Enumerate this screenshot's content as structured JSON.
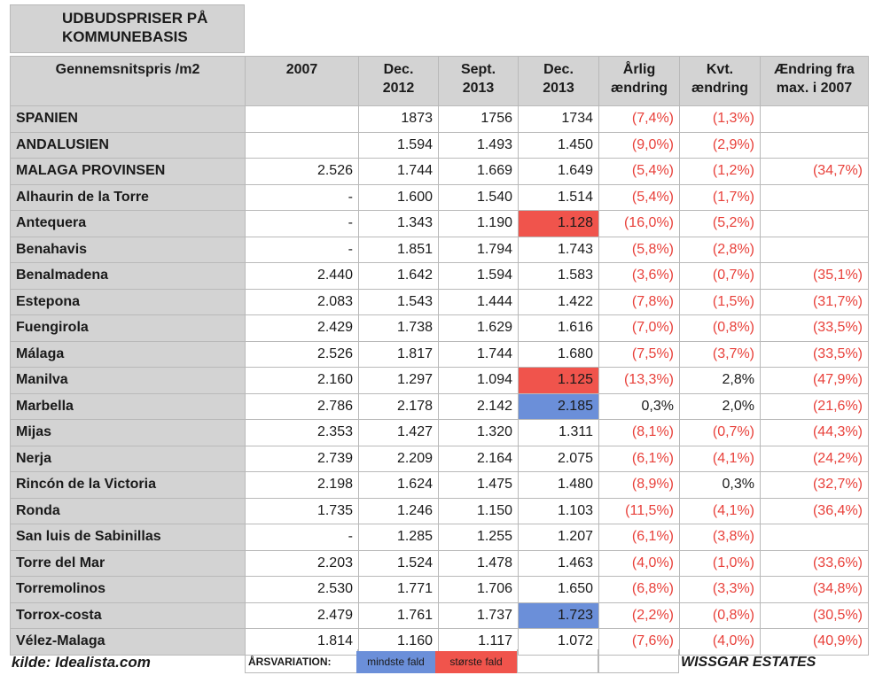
{
  "title_lines": [
    "UDBUDSPRISER PÅ",
    "KOMMUNEBASIS"
  ],
  "columns": [
    [
      "Gennemsnitspris /m2"
    ],
    [
      "2007"
    ],
    [
      "Dec.",
      "2012"
    ],
    [
      "Sept.",
      "2013"
    ],
    [
      "Dec.",
      "2013"
    ],
    [
      "Årlig",
      "ændring"
    ],
    [
      "Kvt.",
      "ændring"
    ],
    [
      "Ændring fra",
      "max. i 2007"
    ]
  ],
  "rows": [
    {
      "name": "SPANIEN",
      "y2007": "",
      "dec2012": "1873",
      "sep2013": "1756",
      "dec2013": "1734",
      "annual": "(7,4%)",
      "quarterly": "(1,3%)",
      "from_max": ""
    },
    {
      "name": "ANDALUSIEN",
      "y2007": "",
      "dec2012": "1.594",
      "sep2013": "1.493",
      "dec2013": "1.450",
      "annual": "(9,0%)",
      "quarterly": "(2,9%)",
      "from_max": ""
    },
    {
      "name": "MALAGA PROVINSEN",
      "y2007": "2.526",
      "dec2012": "1.744",
      "sep2013": "1.669",
      "dec2013": "1.649",
      "annual": "(5,4%)",
      "quarterly": "(1,2%)",
      "from_max": "(34,7%)"
    },
    {
      "name": "Alhaurin de la Torre",
      "y2007": "-",
      "dec2012": "1.600",
      "sep2013": "1.540",
      "dec2013": "1.514",
      "annual": "(5,4%)",
      "quarterly": "(1,7%)",
      "from_max": ""
    },
    {
      "name": "Antequera",
      "y2007": "-",
      "dec2012": "1.343",
      "sep2013": "1.190",
      "dec2013": "1.128",
      "annual": "(16,0%)",
      "quarterly": "(5,2%)",
      "from_max": "",
      "highlight": "red"
    },
    {
      "name": "Benahavis",
      "y2007": "-",
      "dec2012": "1.851",
      "sep2013": "1.794",
      "dec2013": "1.743",
      "annual": "(5,8%)",
      "quarterly": "(2,8%)",
      "from_max": ""
    },
    {
      "name": "Benalmadena",
      "y2007": "2.440",
      "dec2012": "1.642",
      "sep2013": "1.594",
      "dec2013": "1.583",
      "annual": "(3,6%)",
      "quarterly": "(0,7%)",
      "from_max": "(35,1%)"
    },
    {
      "name": "Estepona",
      "y2007": "2.083",
      "dec2012": "1.543",
      "sep2013": "1.444",
      "dec2013": "1.422",
      "annual": "(7,8%)",
      "quarterly": "(1,5%)",
      "from_max": "(31,7%)"
    },
    {
      "name": "Fuengirola",
      "y2007": "2.429",
      "dec2012": "1.738",
      "sep2013": "1.629",
      "dec2013": "1.616",
      "annual": "(7,0%)",
      "quarterly": "(0,8%)",
      "from_max": "(33,5%)"
    },
    {
      "name": "Málaga",
      "y2007": "2.526",
      "dec2012": "1.817",
      "sep2013": "1.744",
      "dec2013": "1.680",
      "annual": "(7,5%)",
      "quarterly": "(3,7%)",
      "from_max": "(33,5%)"
    },
    {
      "name": "Manilva",
      "y2007": "2.160",
      "dec2012": "1.297",
      "sep2013": "1.094",
      "dec2013": "1.125",
      "annual": "(13,3%)",
      "quarterly": "2,8%",
      "from_max": "(47,9%)",
      "highlight": "red"
    },
    {
      "name": "Marbella",
      "y2007": "2.786",
      "dec2012": "2.178",
      "sep2013": "2.142",
      "dec2013": "2.185",
      "annual": "0,3%",
      "quarterly": "2,0%",
      "from_max": "(21,6%)",
      "highlight": "blue"
    },
    {
      "name": "Mijas",
      "y2007": "2.353",
      "dec2012": "1.427",
      "sep2013": "1.320",
      "dec2013": "1.311",
      "annual": "(8,1%)",
      "quarterly": "(0,7%)",
      "from_max": "(44,3%)"
    },
    {
      "name": "Nerja",
      "y2007": "2.739",
      "dec2012": "2.209",
      "sep2013": "2.164",
      "dec2013": "2.075",
      "annual": "(6,1%)",
      "quarterly": "(4,1%)",
      "from_max": "(24,2%)"
    },
    {
      "name": "Rincón de la Victoria",
      "y2007": "2.198",
      "dec2012": "1.624",
      "sep2013": "1.475",
      "dec2013": "1.480",
      "annual": "(8,9%)",
      "quarterly": "0,3%",
      "from_max": "(32,7%)"
    },
    {
      "name": "Ronda",
      "y2007": "1.735",
      "dec2012": "1.246",
      "sep2013": "1.150",
      "dec2013": "1.103",
      "annual": "(11,5%)",
      "quarterly": "(4,1%)",
      "from_max": "(36,4%)"
    },
    {
      "name": "San luis de Sabinillas",
      "y2007": "-",
      "dec2012": "1.285",
      "sep2013": "1.255",
      "dec2013": "1.207",
      "annual": "(6,1%)",
      "quarterly": "(3,8%)",
      "from_max": ""
    },
    {
      "name": "Torre del Mar",
      "y2007": "2.203",
      "dec2012": "1.524",
      "sep2013": "1.478",
      "dec2013": "1.463",
      "annual": "(4,0%)",
      "quarterly": "(1,0%)",
      "from_max": "(33,6%)"
    },
    {
      "name": "Torremolinos",
      "y2007": "2.530",
      "dec2012": "1.771",
      "sep2013": "1.706",
      "dec2013": "1.650",
      "annual": "(6,8%)",
      "quarterly": "(3,3%)",
      "from_max": "(34,8%)"
    },
    {
      "name": "Torrox-costa",
      "y2007": "2.479",
      "dec2012": "1.761",
      "sep2013": "1.737",
      "dec2013": "1.723",
      "annual": "(2,2%)",
      "quarterly": "(0,8%)",
      "from_max": "(30,5%)",
      "highlight": "blue"
    },
    {
      "name": "Vélez-Malaga",
      "y2007": "1.814",
      "dec2012": "1.160",
      "sep2013": "1.117",
      "dec2013": "1.072",
      "annual": "(7,6%)",
      "quarterly": "(4,0%)",
      "from_max": "(40,9%)"
    }
  ],
  "footer": {
    "source": "kilde: Idealista.com",
    "legend_label": "ÅRSVARIATION:",
    "legend_min": "mindste fald",
    "legend_max": "største fald",
    "brand": "WISSGAR ESTATES"
  },
  "colors": {
    "header_bg": "#d3d3d3",
    "negative_text": "#e8403a",
    "highlight_red": "#f0544c",
    "highlight_blue": "#6b8fd9"
  },
  "chart_data": {
    "type": "table",
    "title": "UDBUDSPRISER PÅ KOMMUNEBASIS",
    "columns": [
      "Gennemsnitspris /m2",
      "2007",
      "Dec. 2012",
      "Sept. 2013",
      "Dec. 2013",
      "Årlig ændring",
      "Kvt. ændring",
      "Ændring fra max. i 2007"
    ],
    "legend": {
      "blue": "mindste fald",
      "red": "største fald"
    },
    "source": "kilde: Idealista.com"
  }
}
